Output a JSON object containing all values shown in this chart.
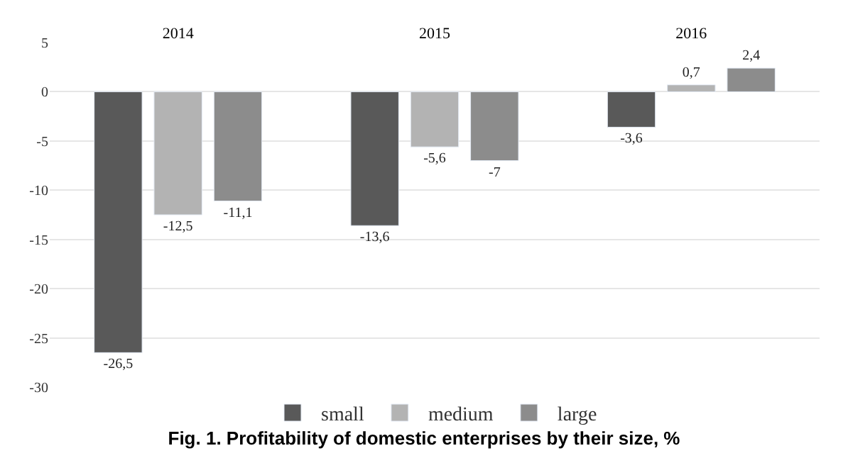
{
  "chart_data": {
    "type": "bar",
    "title": "Fig. 1. Profitability of domestic enterprises by their size, %",
    "categories": [
      "2014",
      "2015",
      "2016"
    ],
    "series": [
      {
        "name": "small",
        "color": "#595959",
        "values": [
          -26.5,
          -13.6,
          -3.6
        ],
        "value_labels": [
          "-26,5",
          "-13,6",
          "-3,6"
        ]
      },
      {
        "name": "medium",
        "color": "#b3b3b3",
        "values": [
          -12.5,
          -5.6,
          0.7
        ],
        "value_labels": [
          "-12,5",
          "-5,6",
          "0,7"
        ]
      },
      {
        "name": "large",
        "color": "#8c8c8c",
        "values": [
          -11.1,
          -7,
          2.4
        ],
        "value_labels": [
          "-11,1",
          "-7",
          "2,4"
        ]
      }
    ],
    "ylim": [
      -30,
      5
    ],
    "yticks": [
      -30,
      -25,
      -20,
      -15,
      -10,
      -5,
      0,
      5
    ],
    "grid": "y",
    "legend": "bottom"
  }
}
